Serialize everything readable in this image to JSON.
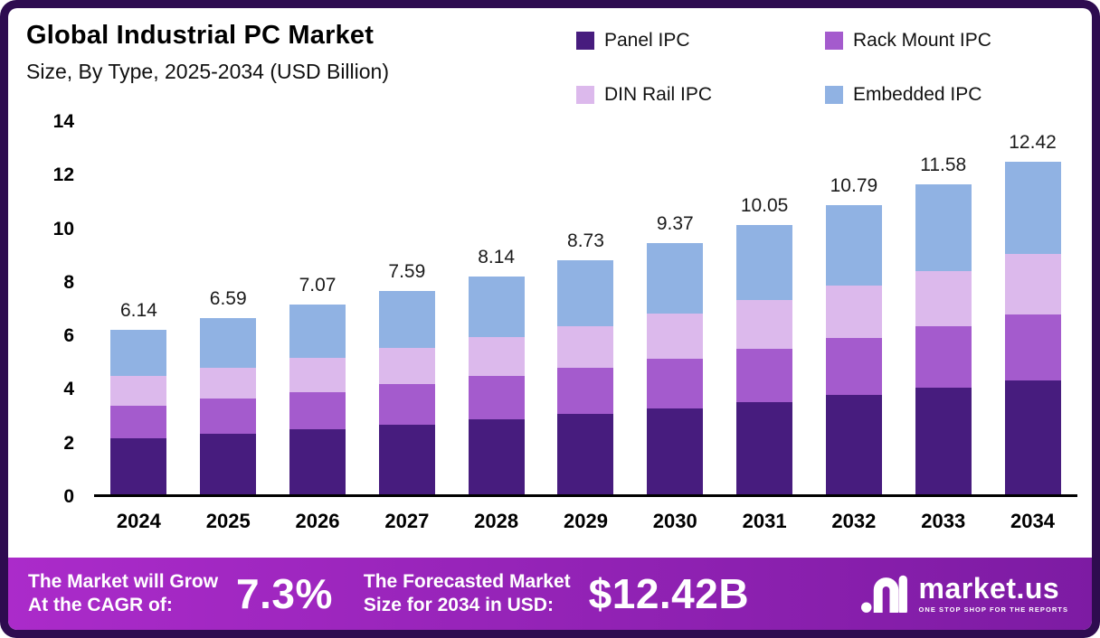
{
  "title": "Global Industrial PC Market",
  "subtitle": "Size, By Type, 2025-2034 (USD Billion)",
  "colors": {
    "frame": "#2e0c50",
    "footer_start": "#ab2bca",
    "footer_end": "#7d1ba3",
    "panel_ipc": "#471c7e",
    "rack_mount_ipc": "#a45bcd",
    "din_rail_ipc": "#dcb9ec",
    "embedded_ipc": "#90b2e3"
  },
  "legend": [
    {
      "label": "Panel IPC",
      "color": "#471c7e"
    },
    {
      "label": "Rack Mount IPC",
      "color": "#a45bcd"
    },
    {
      "label": "DIN Rail IPC",
      "color": "#dcb9ec"
    },
    {
      "label": "Embedded IPC",
      "color": "#90b2e3"
    }
  ],
  "chart_data": {
    "type": "bar",
    "stacked": true,
    "categories": [
      "2024",
      "2025",
      "2026",
      "2027",
      "2028",
      "2029",
      "2030",
      "2031",
      "2032",
      "2033",
      "2034"
    ],
    "series": [
      {
        "name": "Panel IPC",
        "color": "#471c7e",
        "values": [
          2.1,
          2.25,
          2.42,
          2.6,
          2.79,
          2.99,
          3.21,
          3.44,
          3.7,
          3.97,
          4.26
        ]
      },
      {
        "name": "Rack Mount IPC",
        "color": "#a45bcd",
        "values": [
          1.22,
          1.31,
          1.4,
          1.51,
          1.62,
          1.73,
          1.86,
          2.0,
          2.14,
          2.3,
          2.47
        ]
      },
      {
        "name": "DIN Rail IPC",
        "color": "#dcb9ec",
        "values": [
          1.1,
          1.18,
          1.27,
          1.36,
          1.46,
          1.57,
          1.68,
          1.8,
          1.94,
          2.08,
          2.23
        ]
      },
      {
        "name": "Embedded IPC",
        "color": "#90b2e3",
        "values": [
          1.72,
          1.85,
          1.98,
          2.12,
          2.27,
          2.44,
          2.62,
          2.81,
          3.01,
          3.23,
          3.46
        ]
      }
    ],
    "totals": [
      6.14,
      6.59,
      7.07,
      7.59,
      8.14,
      8.73,
      9.37,
      10.05,
      10.79,
      11.58,
      12.42
    ],
    "total_labels": [
      "6.14",
      "6.59",
      "7.07",
      "7.59",
      "8.14",
      "8.73",
      "9.37",
      "10.05",
      "10.79",
      "11.58",
      "12.42"
    ],
    "y_ticks": [
      0,
      2,
      4,
      6,
      8,
      10,
      12,
      14
    ],
    "ylim": [
      0,
      14
    ],
    "xlabel": "",
    "ylabel": "",
    "grid": false,
    "legend_position": "top-right"
  },
  "footer": {
    "cagr_line1": "The Market will Grow",
    "cagr_line2": "At the CAGR of:",
    "cagr_value": "7.3%",
    "forecast_line1": "The Forecasted Market",
    "forecast_line2": "Size for 2034 in USD:",
    "forecast_value": "$12.42B",
    "brand": "market.us",
    "tagline": "ONE STOP SHOP FOR THE REPORTS"
  }
}
